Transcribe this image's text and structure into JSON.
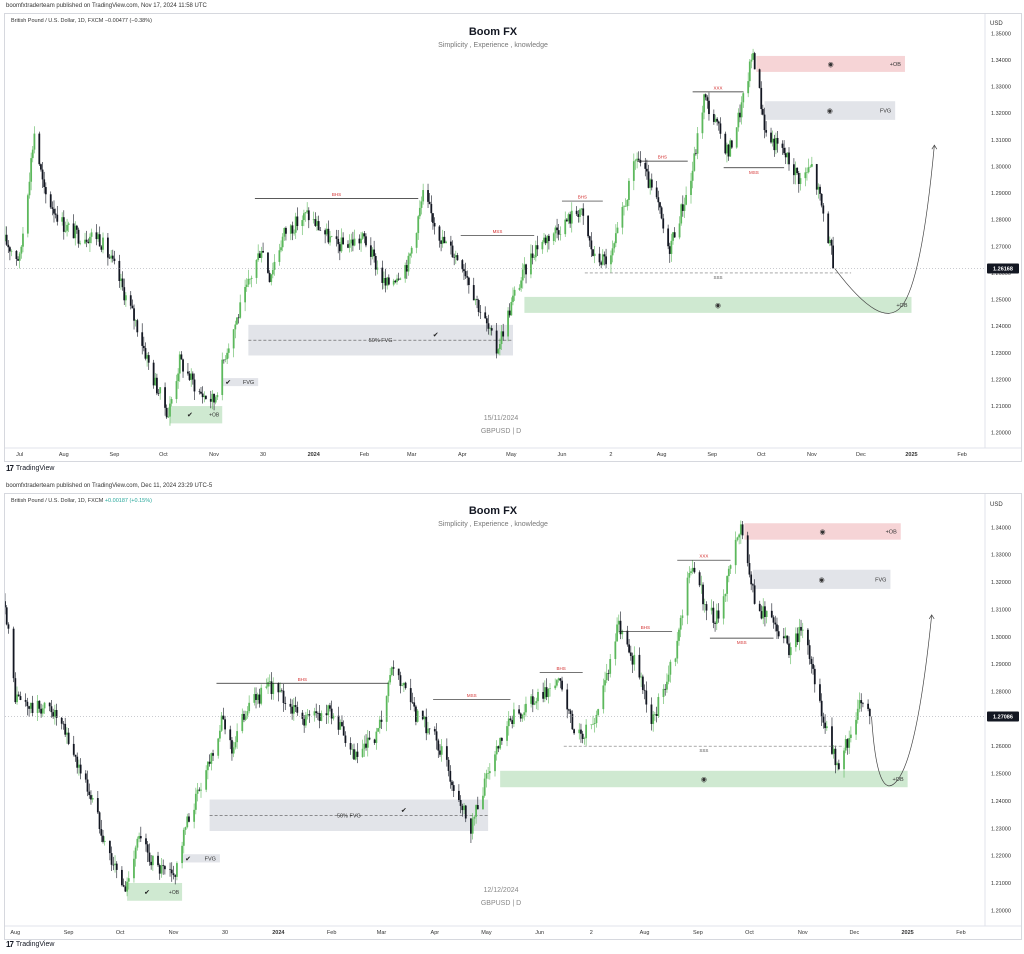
{
  "panels": [
    {
      "published": "boomfxtraderteam published on TradingView.com, Nov 17, 2024 11:58 UTC",
      "symbol": "British Pound / U.S. Dollar, 1D, FXCM",
      "change": "−0.00477 (−0.38%)",
      "title": "Boom FX",
      "subtitle": "Simplicity , Experience , knowledge",
      "date_watermark": "15/11/2024",
      "ticker_watermark": "GBPUSD | D",
      "currency": "USD",
      "last_price": "1.26168",
      "logo": "TradingView"
    },
    {
      "published": "boomfxtraderteam published on TradingView.com, Dec 11, 2024 23:29 UTC-5",
      "symbol": "British Pound / U.S. Dollar, 1D, FXCM",
      "change": "+0.00187 (+0.15%)",
      "title": "Boom FX",
      "subtitle": "Simplicity , Experience , knowledge",
      "date_watermark": "12/12/2024",
      "ticker_watermark": "GBPUSD | D",
      "currency": "USD",
      "last_price": "1.27086",
      "logo": "TradingView"
    }
  ],
  "chart_data": [
    {
      "type": "candlestick",
      "title": "Boom FX",
      "subtitle": "Simplicity , Experience , knowledge",
      "ylim": [
        1.195,
        1.355
      ],
      "y_ticks": [
        "1.35000",
        "1.34000",
        "1.33000",
        "1.32000",
        "1.31000",
        "1.30000",
        "1.29000",
        "1.28000",
        "1.27000",
        "1.26000",
        "1.25000",
        "1.24000",
        "1.23000",
        "1.22000",
        "1.21000",
        "1.20000"
      ],
      "x_ticks": [
        "Jul",
        "Aug",
        "Sep",
        "Oct",
        "Nov",
        "30",
        "2024",
        "Feb",
        "Mar",
        "Apr",
        "May",
        "Jun",
        "2",
        "Aug",
        "Sep",
        "Oct",
        "Nov",
        "Dec",
        "2025",
        "Feb"
      ],
      "x_range": [
        "2023-06-26",
        "2025-02-15"
      ],
      "price_path": [
        [
          "2023-06-26",
          1.272
        ],
        [
          "2023-07-05",
          1.265
        ],
        [
          "2023-07-14",
          1.313
        ],
        [
          "2023-07-20",
          1.29
        ],
        [
          "2023-08-01",
          1.278
        ],
        [
          "2023-08-10",
          1.274
        ],
        [
          "2023-08-22",
          1.274
        ],
        [
          "2023-09-01",
          1.262
        ],
        [
          "2023-09-15",
          1.24
        ],
        [
          "2023-09-25",
          1.22
        ],
        [
          "2023-10-04",
          1.207
        ],
        [
          "2023-10-11",
          1.227
        ],
        [
          "2023-10-23",
          1.215
        ],
        [
          "2023-11-01",
          1.212
        ],
        [
          "2023-11-08",
          1.23
        ],
        [
          "2023-11-20",
          1.252
        ],
        [
          "2023-11-30",
          1.27
        ],
        [
          "2023-12-05",
          1.259
        ],
        [
          "2023-12-14",
          1.275
        ],
        [
          "2023-12-28",
          1.282
        ],
        [
          "2024-01-15",
          1.27
        ],
        [
          "2024-02-01",
          1.273
        ],
        [
          "2024-02-14",
          1.255
        ],
        [
          "2024-02-28",
          1.264
        ],
        [
          "2024-03-08",
          1.289
        ],
        [
          "2024-03-20",
          1.272
        ],
        [
          "2024-04-01",
          1.264
        ],
        [
          "2024-04-12",
          1.246
        ],
        [
          "2024-04-22",
          1.231
        ],
        [
          "2024-05-03",
          1.252
        ],
        [
          "2024-05-16",
          1.27
        ],
        [
          "2024-06-03",
          1.279
        ],
        [
          "2024-06-12",
          1.284
        ],
        [
          "2024-06-21",
          1.265
        ],
        [
          "2024-07-01",
          1.265
        ],
        [
          "2024-07-17",
          1.304
        ],
        [
          "2024-07-30",
          1.285
        ],
        [
          "2024-08-05",
          1.268
        ],
        [
          "2024-08-19",
          1.295
        ],
        [
          "2024-08-27",
          1.326
        ],
        [
          "2024-09-11",
          1.305
        ],
        [
          "2024-09-20",
          1.325
        ],
        [
          "2024-09-26",
          1.343
        ],
        [
          "2024-10-04",
          1.312
        ],
        [
          "2024-10-15",
          1.305
        ],
        [
          "2024-10-25",
          1.295
        ],
        [
          "2024-11-01",
          1.3
        ],
        [
          "2024-11-06",
          1.288
        ],
        [
          "2024-11-15",
          1.2617
        ]
      ],
      "last_price": 1.26168,
      "levels": [
        {
          "label": "BHS",
          "value": 1.288
        },
        {
          "label": "MSS",
          "value": 1.274
        },
        {
          "label": "BHS",
          "value": 1.287
        },
        {
          "label": "BHS",
          "value": 1.302
        },
        {
          "label": "XXX",
          "value": 1.328
        },
        {
          "label": "MSS",
          "value": 1.2995
        },
        {
          "label": "SSS",
          "value": 1.26
        }
      ],
      "zones": [
        {
          "label": "+OB",
          "from": 1.3355,
          "to": 1.3415,
          "color": "#f6d4d6"
        },
        {
          "label": "FVG",
          "from": 1.3175,
          "to": 1.3245,
          "color": "#e2e4e9"
        },
        {
          "label": "+OB",
          "from": 1.245,
          "to": 1.251,
          "color": "#cfe9d1"
        },
        {
          "label": "50% FVG",
          "from": 1.229,
          "to": 1.2405,
          "color": "#e2e4e9"
        },
        {
          "label": "FVG",
          "from": 1.2175,
          "to": 1.2205,
          "color": "#e2e4e9"
        },
        {
          "label": "+OB",
          "from": 1.2035,
          "to": 1.21,
          "color": "#cfe9d1"
        }
      ],
      "annotations": [
        "15/11/2024",
        "GBPUSD | D"
      ]
    },
    {
      "type": "candlestick",
      "title": "Boom FX",
      "subtitle": "Simplicity , Experience , knowledge",
      "ylim": [
        1.195,
        1.35
      ],
      "y_ticks": [
        "1.34000",
        "1.33000",
        "1.32000",
        "1.31000",
        "1.30000",
        "1.29000",
        "1.28000",
        "1.27000",
        "1.26000",
        "1.25000",
        "1.24000",
        "1.23000",
        "1.22000",
        "1.21000",
        "1.20000"
      ],
      "x_ticks": [
        "Aug",
        "Sep",
        "Oct",
        "Nov",
        "30",
        "2024",
        "Feb",
        "Mar",
        "Apr",
        "May",
        "Jun",
        "2",
        "Aug",
        "Sep",
        "Oct",
        "Nov",
        "Dec",
        "2025",
        "Feb"
      ],
      "x_range": [
        "2023-07-26",
        "2025-02-15"
      ],
      "price_path": [
        [
          "2023-07-26",
          1.313
        ],
        [
          "2023-08-01",
          1.278
        ],
        [
          "2023-08-10",
          1.274
        ],
        [
          "2023-08-22",
          1.274
        ],
        [
          "2023-09-01",
          1.262
        ],
        [
          "2023-09-15",
          1.24
        ],
        [
          "2023-09-25",
          1.22
        ],
        [
          "2023-10-04",
          1.207
        ],
        [
          "2023-10-11",
          1.227
        ],
        [
          "2023-10-23",
          1.215
        ],
        [
          "2023-11-01",
          1.212
        ],
        [
          "2023-11-08",
          1.23
        ],
        [
          "2023-11-20",
          1.252
        ],
        [
          "2023-11-30",
          1.27
        ],
        [
          "2023-12-05",
          1.259
        ],
        [
          "2023-12-14",
          1.275
        ],
        [
          "2023-12-28",
          1.282
        ],
        [
          "2024-01-15",
          1.27
        ],
        [
          "2024-02-01",
          1.273
        ],
        [
          "2024-02-14",
          1.255
        ],
        [
          "2024-02-28",
          1.264
        ],
        [
          "2024-03-08",
          1.289
        ],
        [
          "2024-03-20",
          1.272
        ],
        [
          "2024-04-01",
          1.264
        ],
        [
          "2024-04-12",
          1.246
        ],
        [
          "2024-04-22",
          1.231
        ],
        [
          "2024-05-03",
          1.252
        ],
        [
          "2024-05-16",
          1.27
        ],
        [
          "2024-06-03",
          1.279
        ],
        [
          "2024-06-12",
          1.284
        ],
        [
          "2024-06-21",
          1.265
        ],
        [
          "2024-07-01",
          1.265
        ],
        [
          "2024-07-17",
          1.304
        ],
        [
          "2024-07-30",
          1.285
        ],
        [
          "2024-08-05",
          1.268
        ],
        [
          "2024-08-19",
          1.295
        ],
        [
          "2024-08-27",
          1.326
        ],
        [
          "2024-09-11",
          1.305
        ],
        [
          "2024-09-20",
          1.325
        ],
        [
          "2024-09-26",
          1.343
        ],
        [
          "2024-10-04",
          1.312
        ],
        [
          "2024-10-15",
          1.305
        ],
        [
          "2024-10-25",
          1.295
        ],
        [
          "2024-11-01",
          1.303
        ],
        [
          "2024-11-06",
          1.288
        ],
        [
          "2024-11-15",
          1.265
        ],
        [
          "2024-11-22",
          1.25
        ],
        [
          "2024-11-27",
          1.262
        ],
        [
          "2024-12-05",
          1.278
        ],
        [
          "2024-12-11",
          1.2709
        ]
      ],
      "last_price": 1.27086,
      "levels": [
        {
          "label": "BHS",
          "value": 1.283
        },
        {
          "label": "MSS",
          "value": 1.277
        },
        {
          "label": "BHS",
          "value": 1.287
        },
        {
          "label": "BHS",
          "value": 1.302
        },
        {
          "label": "XXX",
          "value": 1.328
        },
        {
          "label": "MSS",
          "value": 1.2995
        },
        {
          "label": "SSS",
          "value": 1.26
        }
      ],
      "zones": [
        {
          "label": "+OB",
          "from": 1.3355,
          "to": 1.3415,
          "color": "#f6d4d6"
        },
        {
          "label": "FVG",
          "from": 1.3175,
          "to": 1.3245,
          "color": "#e2e4e9"
        },
        {
          "label": "+OB",
          "from": 1.245,
          "to": 1.251,
          "color": "#cfe9d1"
        },
        {
          "label": "50% FVG",
          "from": 1.229,
          "to": 1.2405,
          "color": "#e2e4e9"
        },
        {
          "label": "FVG",
          "from": 1.2175,
          "to": 1.2205,
          "color": "#e2e4e9"
        },
        {
          "label": "+OB",
          "from": 1.2035,
          "to": 1.21,
          "color": "#cfe9d1"
        }
      ],
      "annotations": [
        "12/12/2024",
        "GBPUSD | D"
      ]
    }
  ]
}
